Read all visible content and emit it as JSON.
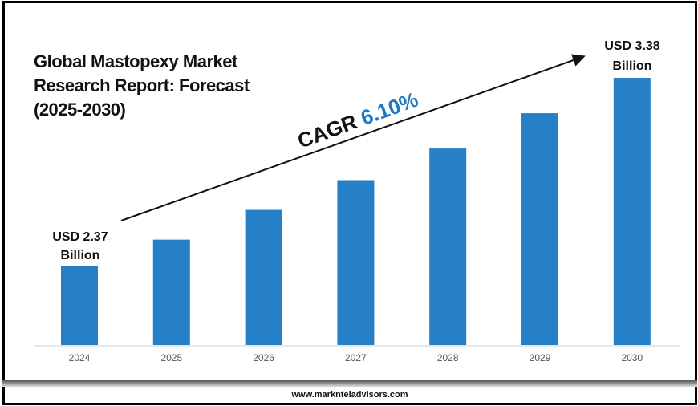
{
  "chart_data": {
    "type": "bar",
    "title": "Global Mastopexy Market Research Report: Forecast (2025-2030)",
    "title_lines": [
      "Global Mastopexy Market",
      "Research Report: Forecast",
      "(2025-2030)"
    ],
    "categories": [
      "2024",
      "2025",
      "2026",
      "2027",
      "2028",
      "2029",
      "2030"
    ],
    "values": [
      2.37,
      2.51,
      2.67,
      2.83,
      3.0,
      3.19,
      3.38
    ],
    "unit": "USD Billion",
    "annotations": {
      "start_label": [
        "USD 2.37",
        "Billion"
      ],
      "end_label": [
        "USD 3.38",
        "Billion"
      ],
      "cagr_label": "CAGR",
      "cagr_value": "6.10%"
    },
    "bar_color": "#2680c8",
    "cagr_color": "#1f78c8",
    "grid": false,
    "legend": "none"
  },
  "footer": {
    "website": "www.marknteladvisors.com"
  }
}
